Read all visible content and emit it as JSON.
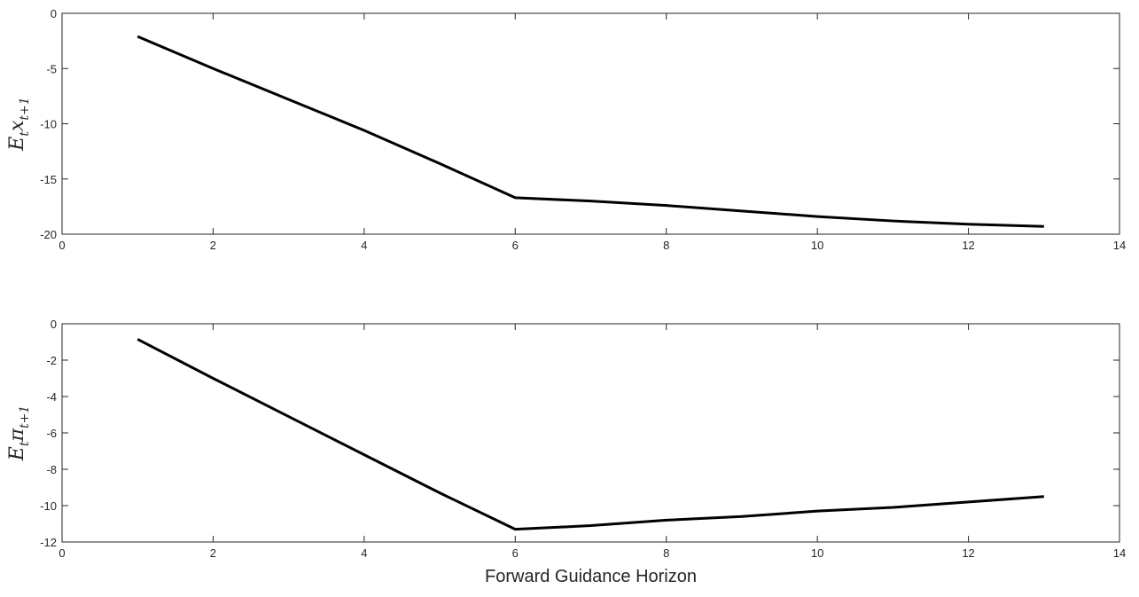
{
  "chart_data": [
    {
      "type": "line",
      "xlabel": "",
      "ylabel": {
        "main": "E",
        "sub1": "t",
        "var": "x",
        "sub2": "t+1"
      },
      "xlim": [
        0,
        14
      ],
      "ylim": [
        -20,
        0
      ],
      "xticks": [
        0,
        2,
        4,
        6,
        8,
        10,
        12,
        14
      ],
      "yticks": [
        0,
        -5,
        -10,
        -15,
        -20
      ],
      "series": [
        {
          "x": [
            1,
            2,
            3,
            4,
            5,
            6,
            7,
            8,
            9,
            10,
            11,
            12,
            13
          ],
          "y": [
            -2.1,
            -5.0,
            -7.8,
            -10.6,
            -13.6,
            -16.7,
            -17.0,
            -17.4,
            -17.9,
            -18.4,
            -18.8,
            -19.1,
            -19.3
          ]
        }
      ]
    },
    {
      "type": "line",
      "xlabel": "Forward Guidance Horizon",
      "ylabel": {
        "main": "E",
        "sub1": "t",
        "var": "π",
        "sub2": "t+1"
      },
      "xlim": [
        0,
        14
      ],
      "ylim": [
        -12,
        0
      ],
      "xticks": [
        0,
        2,
        4,
        6,
        8,
        10,
        12,
        14
      ],
      "yticks": [
        0,
        -2,
        -4,
        -6,
        -8,
        -10,
        -12
      ],
      "series": [
        {
          "x": [
            1,
            2,
            3,
            4,
            5,
            6,
            7,
            8,
            9,
            10,
            11,
            12,
            13
          ],
          "y": [
            -0.85,
            -3.0,
            -5.1,
            -7.2,
            -9.3,
            -11.3,
            -11.1,
            -10.8,
            -10.6,
            -10.3,
            -10.1,
            -9.8,
            -9.5
          ]
        }
      ]
    }
  ]
}
